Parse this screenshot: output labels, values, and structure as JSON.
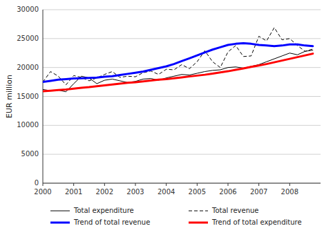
{
  "chart_data": {
    "type": "line",
    "ylabel": "EUR million",
    "x": [
      2000.0,
      2000.25,
      2000.5,
      2000.75,
      2001.0,
      2001.25,
      2001.5,
      2001.75,
      2002.0,
      2002.25,
      2002.5,
      2002.75,
      2003.0,
      2003.25,
      2003.5,
      2003.75,
      2004.0,
      2004.25,
      2004.5,
      2004.75,
      2005.0,
      2005.25,
      2005.5,
      2005.75,
      2006.0,
      2006.25,
      2006.5,
      2006.75,
      2007.0,
      2007.25,
      2007.5,
      2007.75,
      2008.0,
      2008.25,
      2008.5,
      2008.75
    ],
    "xlim": [
      2000,
      2009.0
    ],
    "xticks": [
      2000,
      2001,
      2002,
      2003,
      2004,
      2005,
      2006,
      2007,
      2008
    ],
    "ylim": [
      0,
      30000
    ],
    "yticks": [
      0,
      5000,
      10000,
      15000,
      20000,
      25000,
      30000
    ],
    "grid": true,
    "legend": "bottom",
    "series": [
      {
        "name": "Total expenditure",
        "color": "#000000",
        "line_style": "solid",
        "values": [
          16200,
          16000,
          16100,
          15800,
          17200,
          18500,
          18200,
          17200,
          17800,
          18000,
          17700,
          17400,
          17600,
          18000,
          18100,
          17800,
          18200,
          18500,
          18800,
          18700,
          19000,
          19300,
          19500,
          19600,
          20000,
          20100,
          19900,
          20200,
          20500,
          21000,
          21500,
          22000,
          22500,
          22200,
          22800,
          23000
        ]
      },
      {
        "name": "Total revenue",
        "color": "#000000",
        "line_style": "dashed",
        "values": [
          17500,
          19300,
          18500,
          17000,
          18600,
          18300,
          17700,
          18200,
          18800,
          19300,
          18300,
          18500,
          18400,
          19100,
          19400,
          18800,
          19700,
          19600,
          20500,
          19800,
          21000,
          22900,
          21000,
          20000,
          22700,
          23800,
          21900,
          22000,
          25400,
          24600,
          26900,
          24800,
          25000,
          23800,
          22800,
          23200
        ]
      },
      {
        "name": "Trend of total revenue",
        "color": "#0000FF",
        "line_style": "solid",
        "values": [
          17500,
          17700,
          17900,
          18000,
          18100,
          18150,
          18200,
          18250,
          18400,
          18500,
          18700,
          18900,
          19100,
          19300,
          19600,
          19900,
          20200,
          20600,
          21100,
          21600,
          22100,
          22600,
          23100,
          23500,
          23900,
          24100,
          24200,
          24100,
          23900,
          23800,
          23700,
          23800,
          24000,
          24000,
          23800,
          23700
        ]
      },
      {
        "name": "Trend of total expenditure",
        "color": "#FF0000",
        "line_style": "solid",
        "values": [
          15900,
          16000,
          16100,
          16200,
          16350,
          16500,
          16600,
          16750,
          16900,
          17050,
          17200,
          17350,
          17450,
          17600,
          17750,
          17900,
          18000,
          18150,
          18300,
          18450,
          18600,
          18750,
          18950,
          19150,
          19350,
          19600,
          19850,
          20100,
          20350,
          20600,
          20900,
          21200,
          21500,
          21800,
          22100,
          22400
        ]
      }
    ]
  }
}
